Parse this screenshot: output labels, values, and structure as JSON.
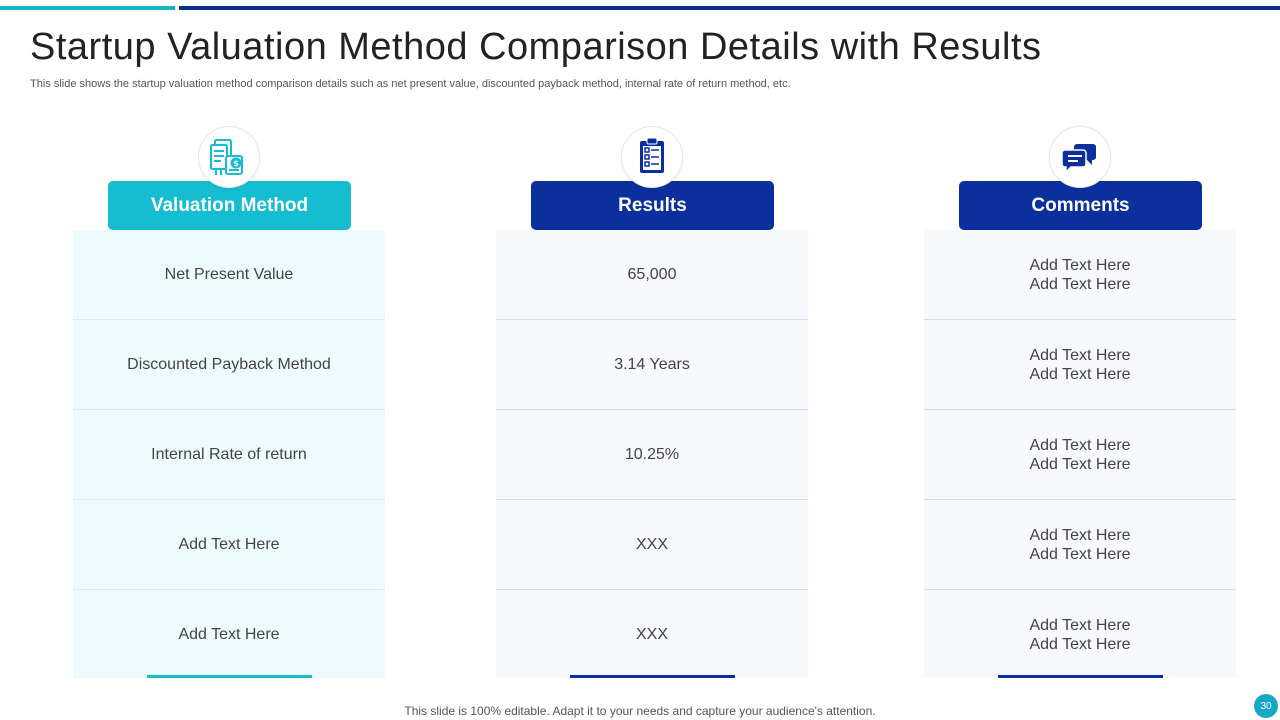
{
  "title": "Startup Valuation Method Comparison Details with Results",
  "subtitle": "This slide shows the startup valuation method comparison details such as net present value, discounted payback method, internal rate of return method, etc.",
  "columns": [
    {
      "icon": "documents-money-icon",
      "header": "Valuation Method",
      "rows": [
        {
          "l1": "Net Present Value"
        },
        {
          "l1": "Discounted Payback Method"
        },
        {
          "l1": "Internal  Rate of return"
        },
        {
          "l1": "Add Text Here"
        },
        {
          "l1": "Add Text Here"
        }
      ]
    },
    {
      "icon": "clipboard-checklist-icon",
      "header": "Results",
      "rows": [
        {
          "l1": "65,000"
        },
        {
          "l1": "3.14 Years"
        },
        {
          "l1": "10.25%"
        },
        {
          "l1": "XXX"
        },
        {
          "l1": "XXX"
        }
      ]
    },
    {
      "icon": "chat-bubbles-icon",
      "header": "Comments",
      "rows": [
        {
          "l1": "Add Text Here",
          "l2": "Add Text Here"
        },
        {
          "l1": "Add Text Here",
          "l2": "Add Text Here"
        },
        {
          "l1": "Add Text Here",
          "l2": "Add Text Here"
        },
        {
          "l1": "Add Text Here",
          "l2": "Add Text Here"
        },
        {
          "l1": "Add Text Here",
          "l2": "Add Text Here"
        }
      ]
    }
  ],
  "footer": "This slide is 100% editable. Adapt it to your needs and capture your audience's attention.",
  "page_number": "30",
  "colors": {
    "cyan": "#16bcd0",
    "navy": "#0b2f9c",
    "cyan_light_bg": "#eefbfd",
    "navy_light_bg": "#f7f9fd"
  }
}
